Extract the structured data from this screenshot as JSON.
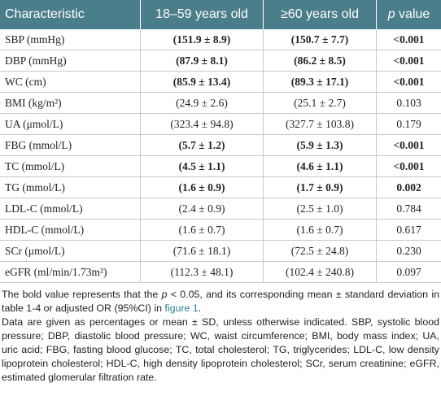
{
  "table": {
    "header": [
      "Characteristic",
      "18–59 years old",
      "≥60 years old",
      [
        "p",
        "value"
      ]
    ],
    "rows": [
      {
        "cells": [
          "SBP (mmHg)",
          "(151.9 ± 8.9)",
          "(150.7 ± 7.7)",
          "<0.001"
        ],
        "bold": true
      },
      {
        "cells": [
          "DBP (mmHg)",
          "(87.9 ± 8.1)",
          "(86.2 ± 8.5)",
          "<0.001"
        ],
        "bold": true
      },
      {
        "cells": [
          "WC (cm)",
          "(85.9 ± 13.4)",
          "(89.3 ± 17.1)",
          "<0.001"
        ],
        "bold": true
      },
      {
        "cells": [
          "BMI (kg/m²)",
          "(24.9 ± 2.6)",
          "(25.1 ± 2.7)",
          "0.103"
        ],
        "bold": false
      },
      {
        "cells": [
          "UA (μmol/L)",
          "(323.4 ± 94.8)",
          "(327.7 ± 103.8)",
          "0.179"
        ],
        "bold": false
      },
      {
        "cells": [
          "FBG (mmol/L)",
          "(5.7 ± 1.2)",
          "(5.9 ± 1.3)",
          "<0.001"
        ],
        "bold": true
      },
      {
        "cells": [
          "TC (mmol/L)",
          "(4.5 ± 1.1)",
          "(4.6 ± 1.1)",
          "<0.001"
        ],
        "bold": true
      },
      {
        "cells": [
          "TG (mmol/L)",
          "(1.6 ± 0.9)",
          "(1.7 ± 0.9)",
          "0.002"
        ],
        "bold": true
      },
      {
        "cells": [
          "LDL-C (mmol/L)",
          "(2.4 ± 0.9)",
          "(2.5 ± 1.0)",
          "0.784"
        ],
        "bold": false
      },
      {
        "cells": [
          "HDL-C (mmol/L)",
          "(1.6 ± 0.7)",
          "(1.6 ± 0.7)",
          "0.617"
        ],
        "bold": false
      },
      {
        "cells": [
          "SCr (μmol/L)",
          "(71.6 ± 18.1)",
          "(72.5 ± 24.8)",
          "0.230"
        ],
        "bold": false
      },
      {
        "cells": [
          "eGFR (ml/min/1.73m²)",
          "(112.3 ± 48.1)",
          "(102.4 ± 240.8)",
          "0.097"
        ],
        "bold": false
      }
    ]
  },
  "notes": [
    [
      "The bold value represents that the ",
      "p",
      " < 0.05, and its corresponding mean ± standard deviation in table 1-4 or adjusted OR (95%CI) in ",
      "figure 1",
      "."
    ],
    "Data are given as percentages or mean ± SD, unless otherwise indicated. SBP, systolic blood pressure; DBP, diastolic blood pressure; WC, waist circumference; BMI, body mass index; UA, uric acid; FBG, fasting blood glucose; TC, total cholesterol; TG, triglycerides; LDL-C, low density lipoprotein cholesterol; HDL-C, high density lipoprotein cholesterol; SCr, serum creatinine; eGFR, estimated glomerular filtration rate."
  ]
}
